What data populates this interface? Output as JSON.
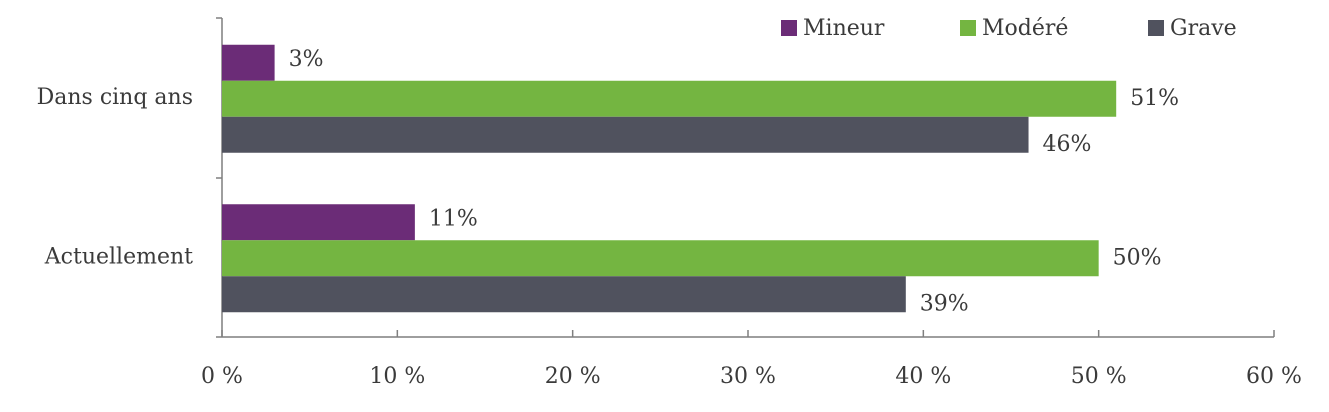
{
  "chart_data": {
    "type": "hbar",
    "categories": [
      "Dans cinq ans",
      "Actuellement"
    ],
    "series": [
      {
        "name": "Mineur",
        "color": "#6b2c77",
        "values": [
          3,
          11
        ],
        "value_labels": [
          "3%",
          "11%"
        ]
      },
      {
        "name": "Modéré",
        "color": "#74b541",
        "values": [
          51,
          50
        ],
        "value_labels": [
          "51%",
          "50%"
        ]
      },
      {
        "name": "Grave",
        "color": "#50525e",
        "values": [
          46,
          39
        ],
        "value_labels": [
          "46%",
          "39%"
        ]
      }
    ],
    "xlim": [
      0,
      60
    ],
    "xticks": [
      {
        "value": 0,
        "label": "0 %"
      },
      {
        "value": 10,
        "label": "10 %"
      },
      {
        "value": 20,
        "label": "20 %"
      },
      {
        "value": 30,
        "label": "30 %"
      },
      {
        "value": 40,
        "label": "40 %"
      },
      {
        "value": 50,
        "label": "50 %"
      },
      {
        "value": 60,
        "label": "60 %"
      }
    ],
    "legend": "top-right"
  }
}
